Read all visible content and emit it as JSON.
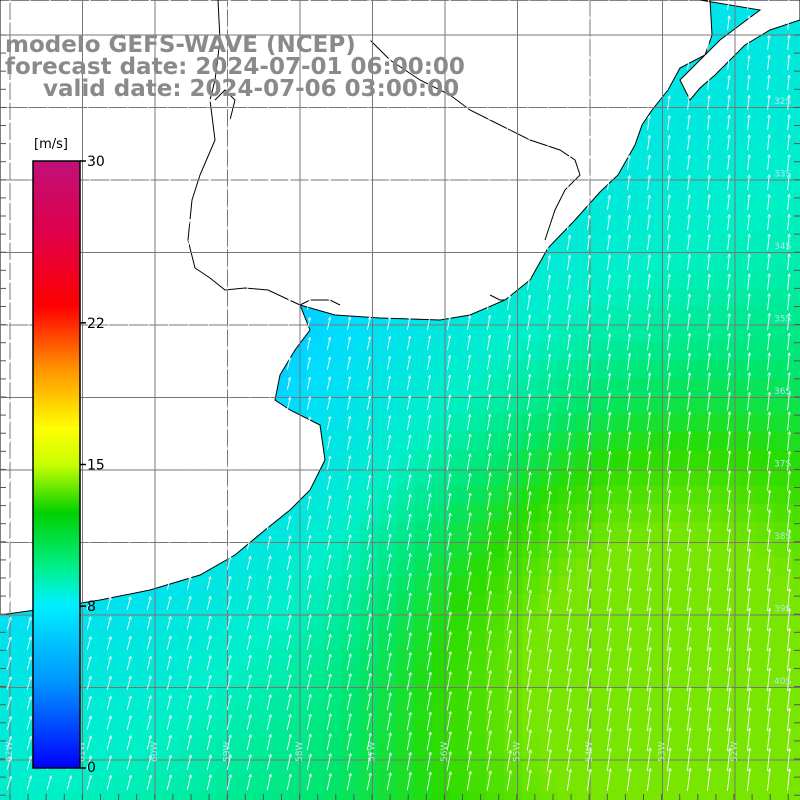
{
  "title": {
    "line1": "modelo GEFS-WAVE (NCEP)",
    "line2": "forecast date: 2024-07-01 06:00:00",
    "line3": "valid date: 2024-07-06 03:00:00"
  },
  "colorbar": {
    "unit": "[m/s]",
    "ticks": [
      "30",
      "22",
      "15",
      "8",
      "0"
    ],
    "tick_values": [
      30,
      22,
      15,
      8,
      0
    ],
    "min": 0,
    "max": 30,
    "colors": [
      "#0000ff",
      "#0094ff",
      "#00e8ff",
      "#00f0a0",
      "#00d000",
      "#c8ff00",
      "#ffff00",
      "#ff8000",
      "#ff0000",
      "#d8006a",
      "#c0107a"
    ]
  },
  "grid": {
    "lat_labels": [
      "32S",
      "33S",
      "34S",
      "35S",
      "36S",
      "37S",
      "38S",
      "39S",
      "40S"
    ],
    "lat_values": [
      -32,
      -33,
      -34,
      -35,
      -36,
      -37,
      -38,
      -39,
      -40
    ],
    "lon_labels": [
      "62W",
      "61W",
      "60W",
      "59W",
      "58W",
      "57W",
      "56W",
      "55W",
      "54W",
      "53W",
      "52W"
    ],
    "lon_values": [
      -62,
      -61,
      -60,
      -59,
      -58,
      -57,
      -56,
      -55,
      -54,
      -53,
      -52
    ]
  },
  "colors": {
    "land": "#ffffff",
    "coast": "#000000",
    "gridline": "#777777",
    "arrow": "#ffffff",
    "title": "#8a8a8a"
  }
}
